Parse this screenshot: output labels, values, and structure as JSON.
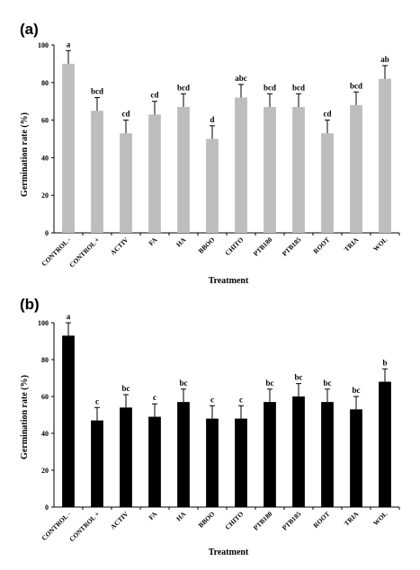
{
  "chart_data": [
    {
      "type": "bar",
      "panel_label": "(a)",
      "ylabel": "Germination rate (%)",
      "xlabel": "Treatment",
      "ylim": [
        0,
        100
      ],
      "yticks": [
        "0",
        "20",
        "40",
        "60",
        "80",
        "100"
      ],
      "bar_color": "#bdbdbd",
      "categories": [
        "CONTROL -",
        "CONTROL +",
        "ACTIV",
        "FA",
        "HA",
        "BBOO",
        "CHITO",
        "PTB180",
        "PTB185",
        "ROOT",
        "TRIA",
        "WOL"
      ],
      "values": [
        90,
        65,
        53,
        63,
        67,
        50,
        72,
        67,
        67,
        53,
        68,
        82
      ],
      "errors": [
        7,
        7,
        7,
        7,
        7,
        7,
        7,
        7,
        7,
        7,
        7,
        7
      ],
      "significance": [
        "a",
        "bcd",
        "cd",
        "cd",
        "bcd",
        "d",
        "abc",
        "bcd",
        "bcd",
        "cd",
        "bcd",
        "ab"
      ]
    },
    {
      "type": "bar",
      "panel_label": "(b)",
      "ylabel": "Germination rate (%)",
      "xlabel": "Treatment",
      "ylim": [
        0,
        100
      ],
      "yticks": [
        "0",
        "20",
        "40",
        "60",
        "80",
        "100"
      ],
      "bar_color": "#000000",
      "categories": [
        "CONTROL -",
        "CONTROL +",
        "ACTIV",
        "FA",
        "HA",
        "BBOO",
        "CHITO",
        "PTB180",
        "PTB185",
        "ROOT",
        "TRIA",
        "WOL"
      ],
      "values": [
        93,
        47,
        54,
        49,
        57,
        48,
        48,
        57,
        60,
        57,
        53,
        68
      ],
      "errors": [
        7,
        7,
        7,
        7,
        7,
        7,
        7,
        7,
        7,
        7,
        7,
        7
      ],
      "significance": [
        "a",
        "c",
        "bc",
        "c",
        "bc",
        "c",
        "c",
        "bc",
        "bc",
        "bc",
        "bc",
        "b"
      ]
    }
  ]
}
